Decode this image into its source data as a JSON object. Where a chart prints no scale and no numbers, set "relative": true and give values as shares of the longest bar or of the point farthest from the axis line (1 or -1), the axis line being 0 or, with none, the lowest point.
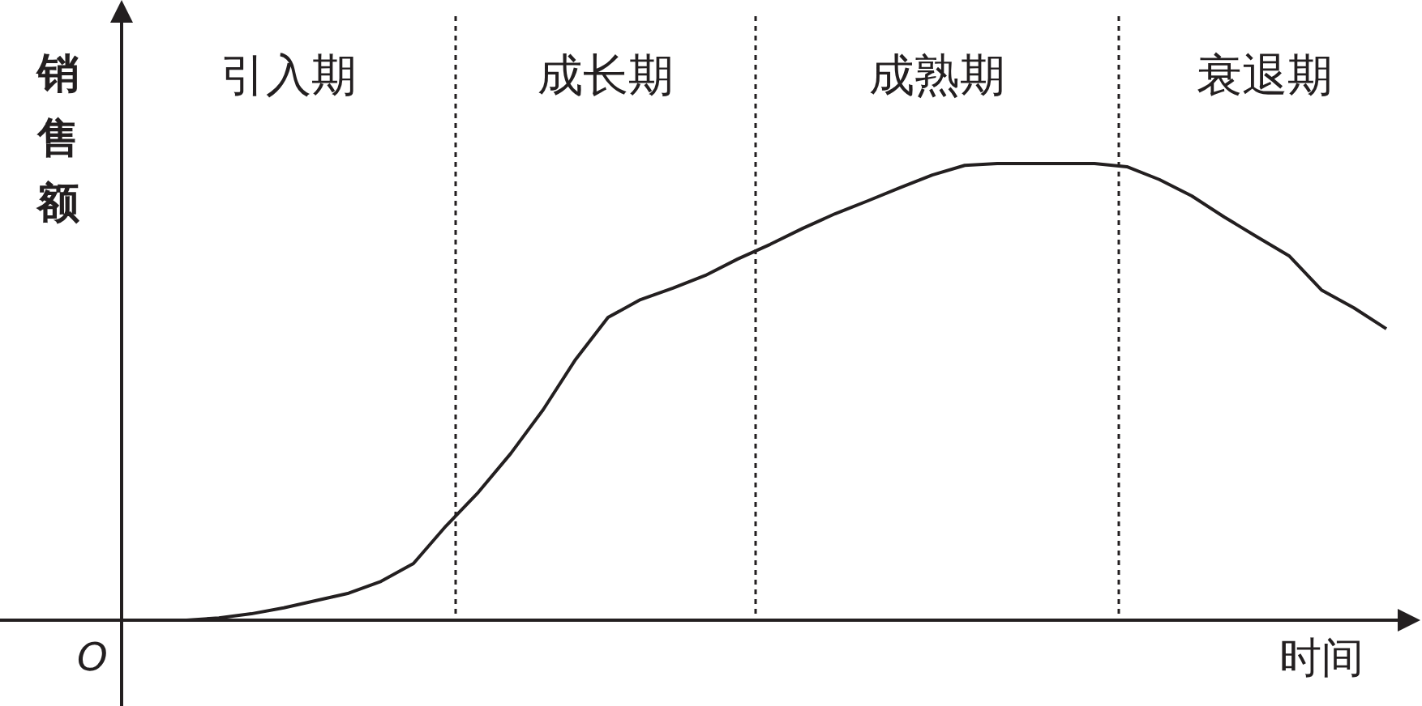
{
  "chart_data": {
    "type": "line",
    "relative": true,
    "xlabel": "时间",
    "ylabel": "销售额",
    "categories": [
      null,
      null,
      null,
      null,
      null,
      null,
      null,
      null,
      null,
      null,
      null,
      null,
      null,
      null,
      null,
      null,
      null,
      null,
      null,
      null,
      null,
      null,
      null,
      null,
      null,
      null,
      null,
      null,
      null,
      null,
      null,
      null,
      null,
      null,
      null,
      null,
      null,
      null
    ],
    "values": [
      0,
      0.005,
      0.014,
      0.027,
      0.043,
      0.059,
      0.085,
      0.124,
      0.206,
      0.28,
      0.365,
      0.461,
      0.571,
      0.663,
      0.702,
      0.727,
      0.755,
      0.791,
      0.823,
      0.858,
      0.89,
      0.918,
      0.947,
      0.975,
      0.996,
      1,
      1,
      1,
      1,
      0.993,
      0.965,
      0.929,
      0.883,
      0.84,
      0.798,
      0.723,
      0.684,
      0.638
    ],
    "color": "#231f20",
    "line_style": "solid",
    "marker": "none",
    "annotations": [
      "引入期",
      "成长期",
      "成熟期",
      "衰退期",
      "O"
    ]
  }
}
